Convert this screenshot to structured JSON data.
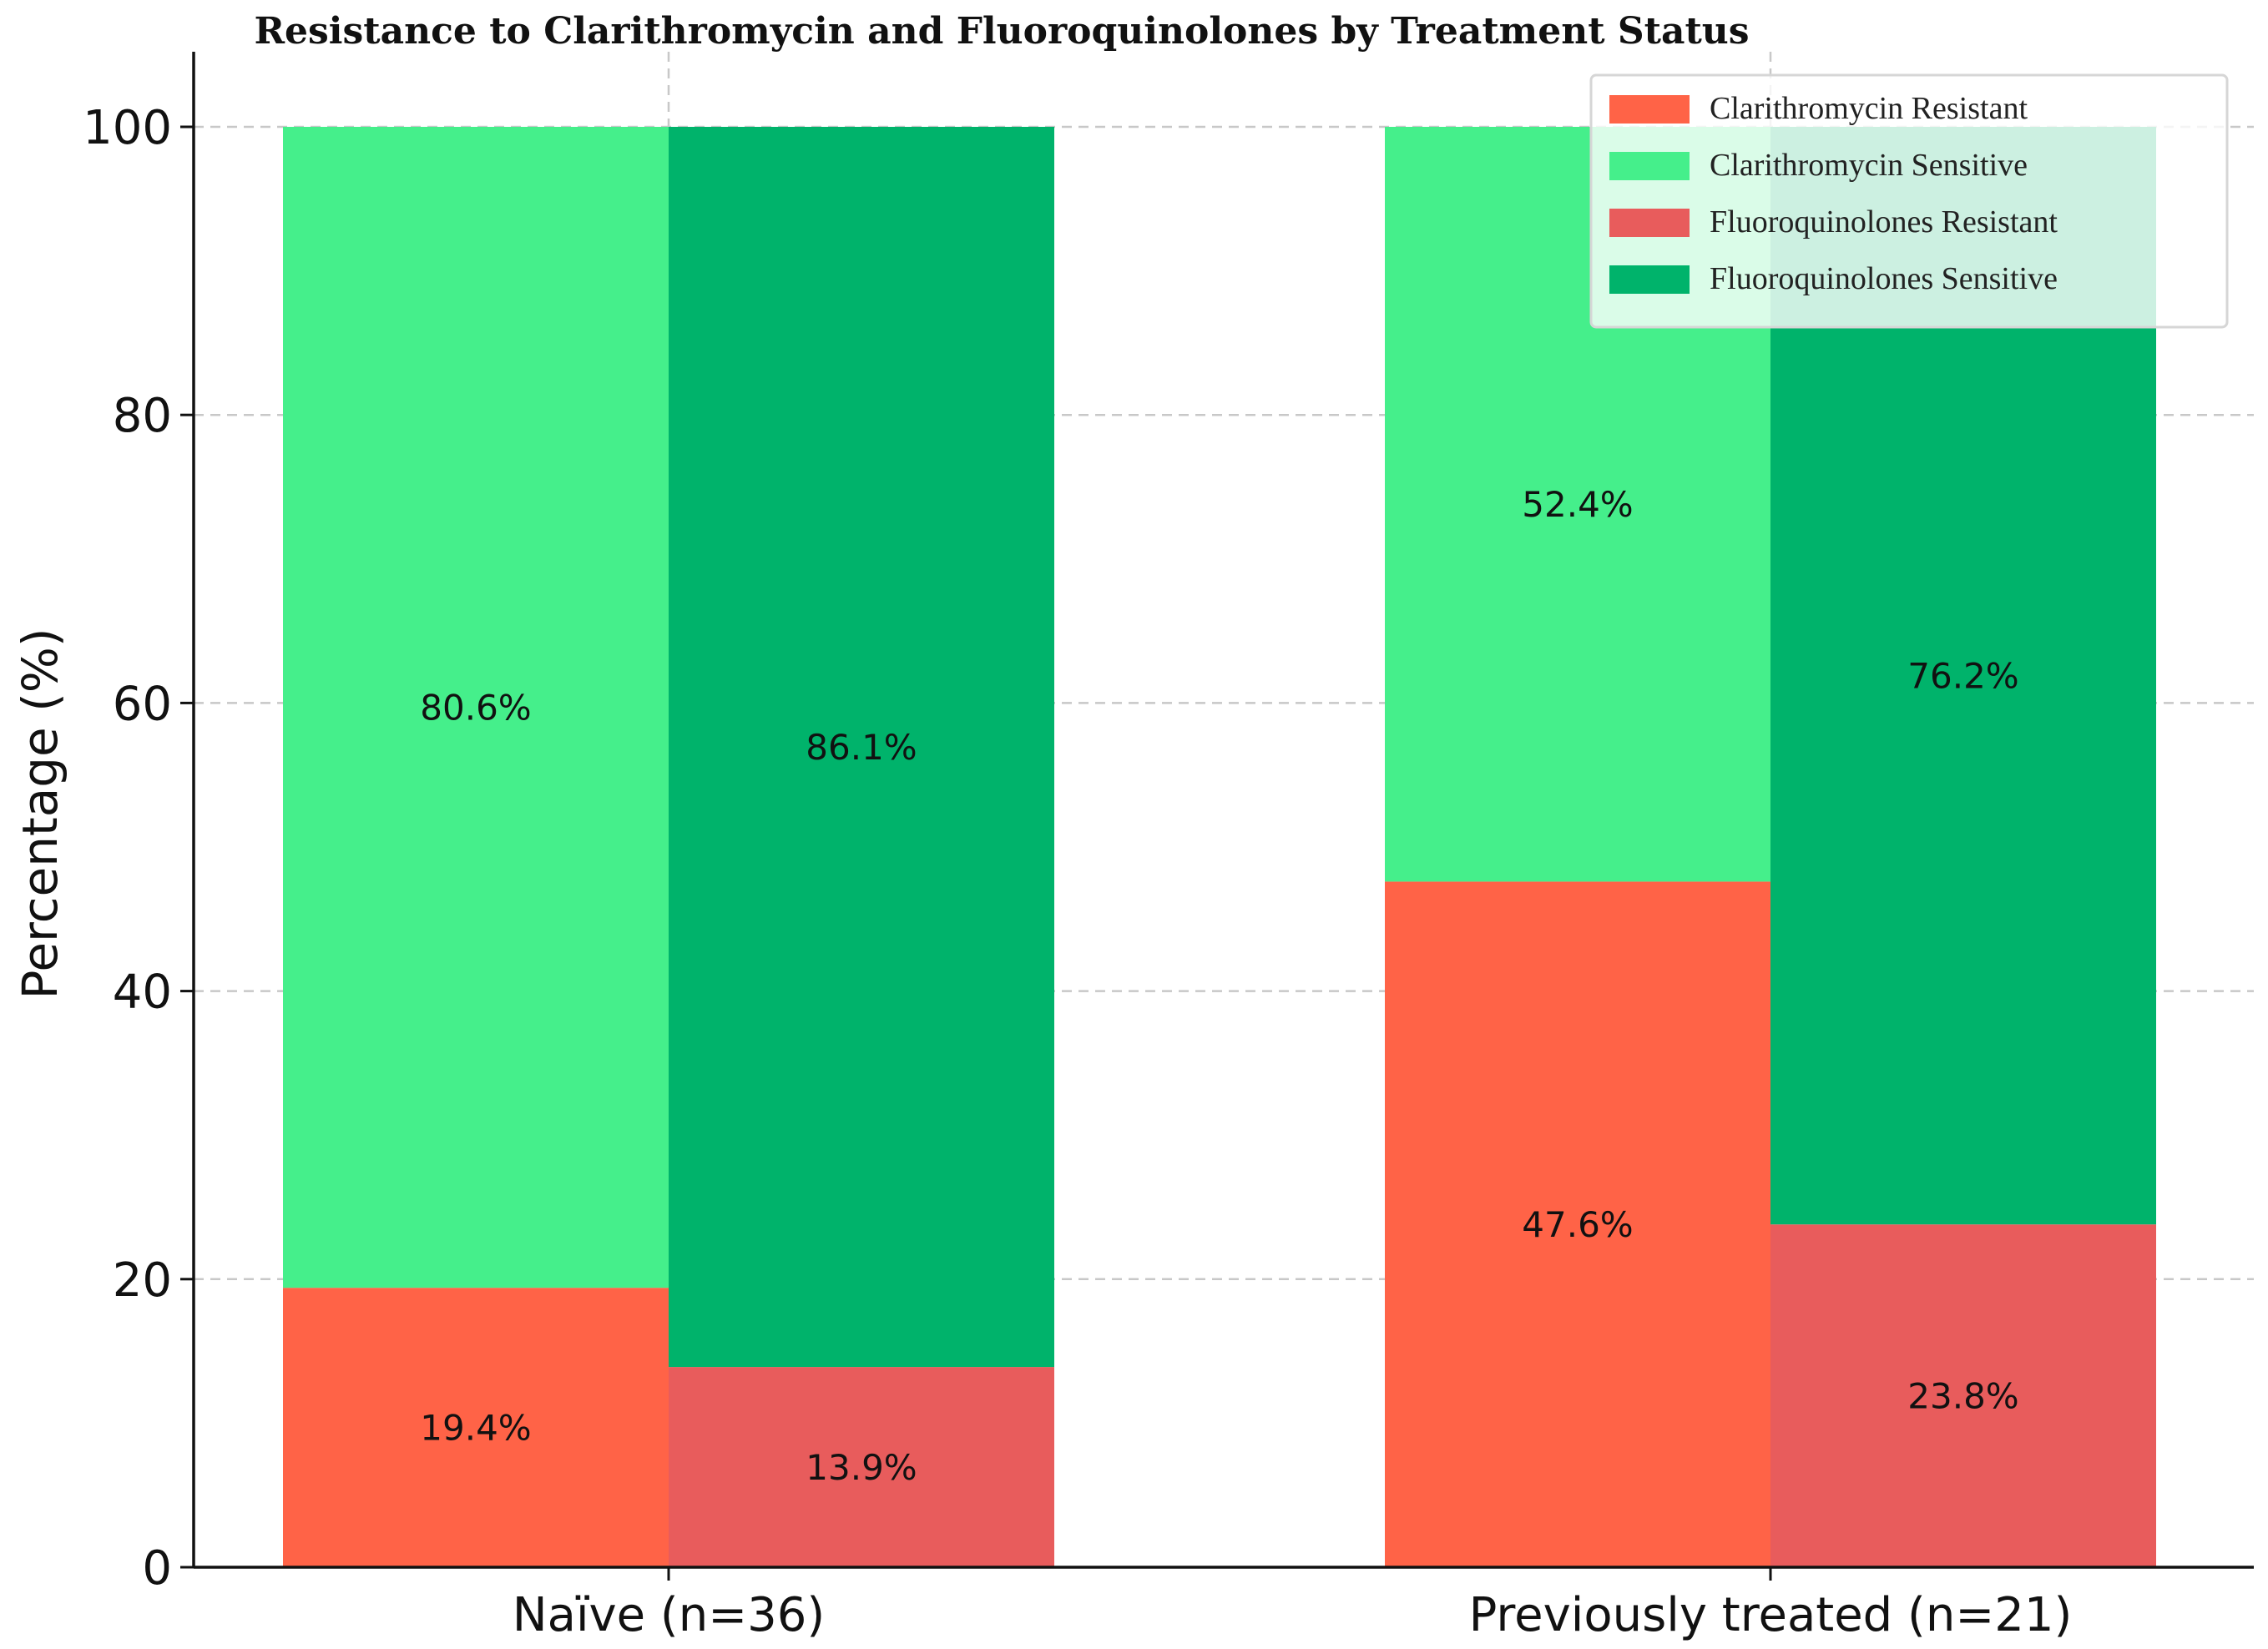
{
  "chart_data": {
    "type": "bar",
    "stacked": true,
    "title": "Resistance to Clarithromycin and Fluoroquinolones by Treatment Status",
    "ylabel": "Percentage (%)",
    "xlabel": "",
    "ylim": [
      0,
      105
    ],
    "yticks": [
      0,
      20,
      40,
      60,
      80,
      100
    ],
    "grid": true,
    "legend_position": "top-right",
    "categories": [
      "Naïve (n=36)",
      "Previously treated (n=21)"
    ],
    "groups": [
      {
        "antibiotic": "Clarithromycin",
        "stack": [
          {
            "series": "Clarithromycin Resistant",
            "values": [
              19.4,
              47.6
            ],
            "labels": [
              "19.4%",
              "47.6%"
            ]
          },
          {
            "series": "Clarithromycin Sensitive",
            "values": [
              80.6,
              52.4
            ],
            "labels": [
              "80.6%",
              "52.4%"
            ]
          }
        ]
      },
      {
        "antibiotic": "Fluoroquinolones",
        "stack": [
          {
            "series": "Fluoroquinolones Resistant",
            "values": [
              13.9,
              23.8
            ],
            "labels": [
              "13.9%",
              "23.8%"
            ]
          },
          {
            "series": "Fluoroquinolones Sensitive",
            "values": [
              86.1,
              76.2
            ],
            "labels": [
              "86.1%",
              "76.2%"
            ]
          }
        ]
      }
    ],
    "series": [
      {
        "name": "Clarithromycin Resistant",
        "color": "#ff6347"
      },
      {
        "name": "Clarithromycin Sensitive",
        "color": "#45ef8b"
      },
      {
        "name": "Fluoroquinolones Resistant",
        "color": "#e85c5c"
      },
      {
        "name": "Fluoroquinolones Sensitive",
        "color": "#00b36b"
      }
    ]
  }
}
